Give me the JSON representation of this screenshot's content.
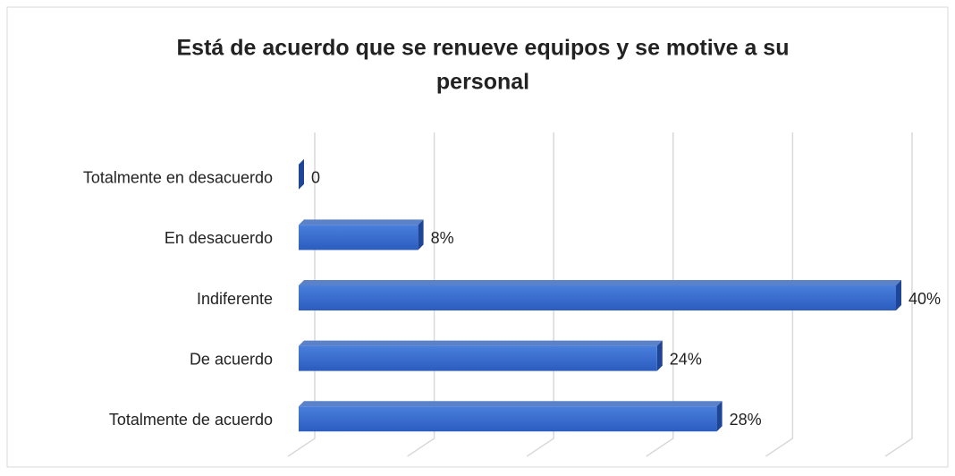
{
  "chart_data": {
    "type": "bar3d_horizontal",
    "title": "Está de acuerdo que se renueve  equipos y se motive  a su personal",
    "categories": [
      "Totalmente en desacuerdo",
      "En desacuerdo",
      "Indiferente",
      "De acuerdo",
      "Totalmente de acuerdo"
    ],
    "values": [
      0,
      8,
      40,
      24,
      28
    ],
    "value_labels": [
      "0",
      "8%",
      "40%",
      "24%",
      "28%"
    ],
    "color": "#3366cc",
    "xlim": [
      0,
      40
    ],
    "xticks": [
      0,
      8,
      16,
      24,
      32,
      40
    ],
    "grid": true
  }
}
